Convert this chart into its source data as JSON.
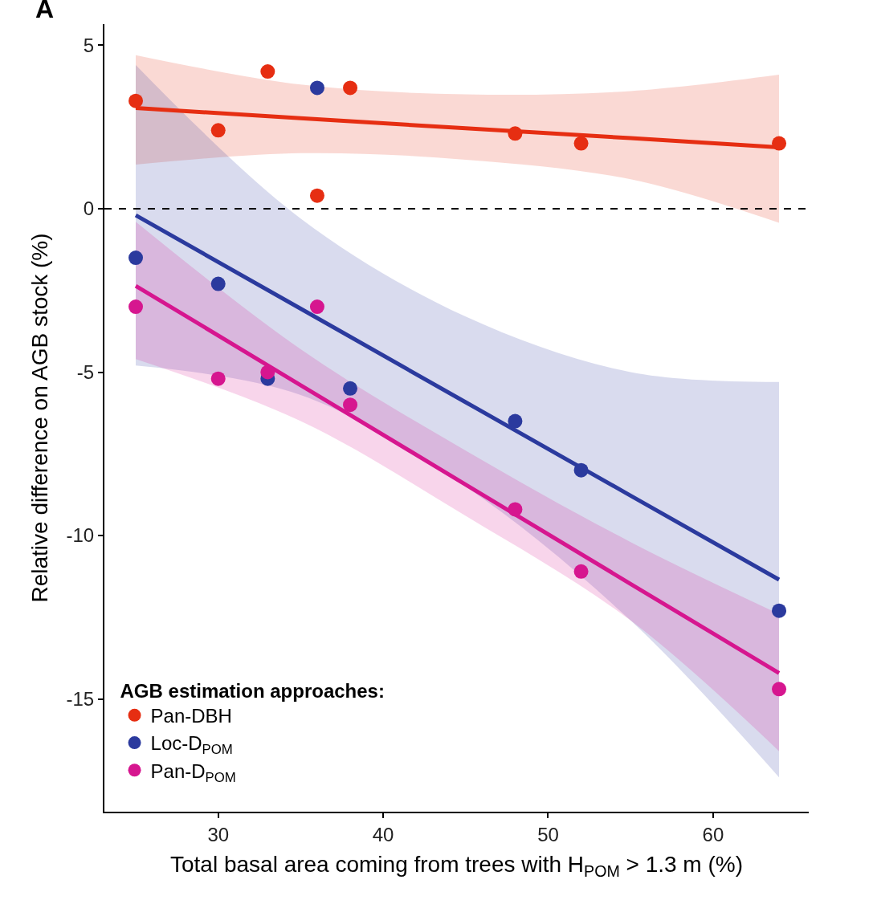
{
  "chart_data": {
    "type": "scatter",
    "xlabel": "Total basal area coming from trees with H$_{POM}$ > 1.3 m (%)",
    "ylabel": "Relative difference on AGB stock (%)",
    "legend_title": "AGB estimation approaches:",
    "annotations": [
      "A"
    ],
    "xlim": [
      23.1,
      65.8
    ],
    "ylim": [
      -18.45,
      5.65
    ],
    "xticks": [
      30,
      40,
      50,
      60
    ],
    "yticks": [
      -15,
      -10,
      -5,
      0,
      5
    ],
    "legend": "bottom left",
    "marker": "circle",
    "ref_lines": [
      {
        "axis": "y",
        "value": 0,
        "color": "#000000",
        "line_style": "dashed"
      }
    ],
    "series": [
      {
        "type": "line",
        "color": "#e62e12",
        "marker": "none",
        "x": [
          25,
          35,
          45,
          55,
          64
        ],
        "values": [
          3.08,
          2.77,
          2.46,
          2.16,
          1.88
        ],
        "upper": [
          4.7,
          3.8,
          3.5,
          3.6,
          4.1
        ],
        "lower": [
          1.35,
          1.7,
          1.5,
          0.9,
          -0.43
        ]
      },
      {
        "type": "line",
        "color": "#2b3a9e",
        "marker": "none",
        "x": [
          25,
          35,
          45,
          55,
          64
        ],
        "values": [
          -0.2,
          -3.06,
          -5.92,
          -8.78,
          -11.35
        ],
        "upper": [
          4.4,
          -0.3,
          -3.3,
          -5.0,
          -5.3
        ],
        "lower": [
          -4.8,
          -5.7,
          -8.5,
          -12.6,
          -17.4
        ]
      },
      {
        "type": "line",
        "color": "#d6168f",
        "marker": "none",
        "x": [
          25,
          35,
          45,
          55,
          64
        ],
        "values": [
          -2.36,
          -5.4,
          -8.44,
          -11.48,
          -14.21
        ],
        "upper": [
          -0.4,
          -4.3,
          -7.4,
          -10.2,
          -12.4
        ],
        "lower": [
          -4.6,
          -6.5,
          -9.4,
          -12.6,
          -16.6
        ]
      },
      {
        "name": "Pan-DBH",
        "color": "#e62e12",
        "x": [
          25,
          30,
          33,
          36,
          38,
          48,
          52,
          64
        ],
        "values": [
          3.3,
          2.4,
          4.2,
          0.4,
          3.7,
          2.3,
          2.0,
          2.0
        ]
      },
      {
        "name": "Loc-D$_{POM}$",
        "color": "#2b3a9e",
        "x": [
          25,
          30,
          33,
          36,
          38,
          48,
          52,
          64
        ],
        "values": [
          -1.5,
          -2.3,
          -5.2,
          3.7,
          -5.5,
          -6.5,
          -8.0,
          -12.3
        ]
      },
      {
        "name": "Pan-D$_{POM}$",
        "color": "#d6168f",
        "x": [
          25,
          30,
          33,
          36,
          38,
          48,
          52,
          64
        ],
        "values": [
          -3.0,
          -5.2,
          -5.0,
          -3.0,
          -6.0,
          -9.2,
          -11.1,
          -14.7
        ]
      }
    ]
  }
}
